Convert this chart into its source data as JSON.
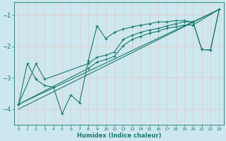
{
  "xlabel": "Humidex (Indice chaleur)",
  "xlim": [
    -0.5,
    23.5
  ],
  "ylim": [
    -4.5,
    -0.6
  ],
  "yticks": [
    -4,
    -3,
    -2,
    -1
  ],
  "xticks": [
    0,
    1,
    2,
    3,
    4,
    5,
    6,
    7,
    8,
    9,
    10,
    11,
    12,
    13,
    14,
    15,
    16,
    17,
    18,
    19,
    20,
    21,
    22,
    23
  ],
  "bg_color": "#cce8ee",
  "line_color": "#1a7a6e",
  "grid_color": "#b0d8e0",
  "curve_lines": [
    {
      "x": [
        0,
        1,
        2,
        3,
        4,
        5,
        6,
        7,
        8,
        9,
        10,
        11,
        12,
        13,
        14,
        15,
        16,
        17,
        18,
        19,
        20,
        21,
        22,
        23
      ],
      "y": [
        -3.85,
        -2.55,
        -3.05,
        -3.25,
        -3.3,
        -4.15,
        -3.55,
        -3.8,
        -2.45,
        -1.35,
        -1.75,
        -1.55,
        -1.45,
        -1.38,
        -1.32,
        -1.28,
        -1.22,
        -1.22,
        -1.18,
        -1.18,
        -1.22,
        -2.1,
        -2.12,
        -0.82
      ]
    },
    {
      "x": [
        0,
        2,
        3,
        8,
        9,
        10,
        11,
        12,
        13,
        14,
        15,
        16,
        17,
        18,
        19,
        20,
        21,
        22,
        23
      ],
      "y": [
        -3.85,
        -2.55,
        -3.05,
        -2.55,
        -2.35,
        -2.28,
        -2.18,
        -1.78,
        -1.65,
        -1.55,
        -1.48,
        -1.43,
        -1.35,
        -1.28,
        -1.22,
        -1.22,
        -2.1,
        -2.12,
        -0.82
      ]
    },
    {
      "x": [
        0,
        8,
        9,
        10,
        11,
        12,
        13,
        14,
        15,
        16,
        17,
        18,
        19,
        20,
        23
      ],
      "y": [
        -3.85,
        -2.7,
        -2.5,
        -2.42,
        -2.32,
        -1.98,
        -1.78,
        -1.68,
        -1.58,
        -1.52,
        -1.42,
        -1.38,
        -1.32,
        -1.32,
        -0.82
      ]
    }
  ],
  "straight_lines": [
    {
      "x": [
        0,
        23
      ],
      "y": [
        -3.85,
        -0.82
      ]
    },
    {
      "x": [
        0,
        23
      ],
      "y": [
        -4.0,
        -0.82
      ]
    }
  ]
}
